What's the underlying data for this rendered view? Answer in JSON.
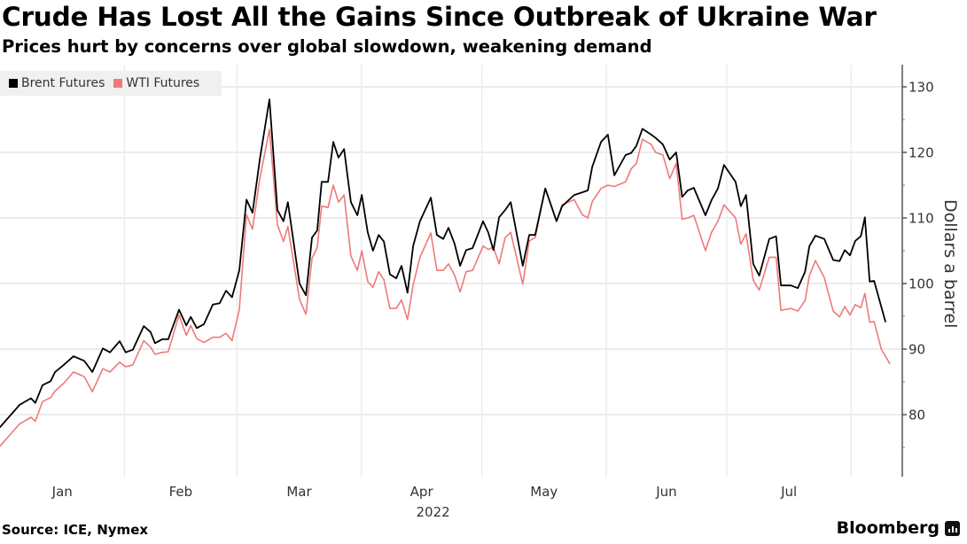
{
  "header": {
    "title": "Crude Has Lost All the Gains Since Outbreak of Ukraine War",
    "subtitle": "Prices hurt by concerns over global slowdown, weakening demand"
  },
  "footer": {
    "source": "Source: ICE, Nymex",
    "brand": "Bloomberg"
  },
  "chart_data": {
    "type": "line",
    "title": "Crude Has Lost All the Gains Since Outbreak of Ukraine War",
    "subtitle": "Prices hurt by concerns over global slowdown, weakening demand",
    "xlabel": "2022",
    "ylabel": "Dollars a barrel",
    "x_unit": "day of year 2022",
    "xlim": [
      1,
      219
    ],
    "ylim": [
      72,
      132
    ],
    "y_ticks": [
      80,
      90,
      100,
      110,
      120,
      130
    ],
    "y_tick_labels": [
      "80",
      "90",
      "100",
      "110",
      "120",
      "130"
    ],
    "x_ticks": [
      {
        "label": "Jan",
        "start": 1,
        "end": 31
      },
      {
        "label": "Feb",
        "start": 32,
        "end": 59
      },
      {
        "label": "Mar",
        "start": 60,
        "end": 90
      },
      {
        "label": "Apr",
        "start": 91,
        "end": 120
      },
      {
        "label": "May",
        "start": 121,
        "end": 151
      },
      {
        "label": "Jun",
        "start": 152,
        "end": 181
      },
      {
        "label": "Jul",
        "start": 182,
        "end": 212
      }
    ],
    "month_boundaries": [
      31,
      59,
      90,
      120,
      151,
      181,
      212
    ],
    "year_label": "2022",
    "grid": true,
    "legend_position": "top-left",
    "series": [
      {
        "name": "Brent Futures",
        "color": "#000000",
        "points": [
          [
            1,
            78.1
          ],
          [
            5.9,
            81.5
          ],
          [
            8.7,
            82.5
          ],
          [
            9.8,
            81.8
          ],
          [
            11.6,
            84.5
          ],
          [
            13.6,
            85.1
          ],
          [
            14.7,
            86.5
          ],
          [
            16.9,
            87.6
          ],
          [
            19.3,
            88.9
          ],
          [
            22,
            88.2
          ],
          [
            24,
            86.5
          ],
          [
            26.6,
            90.1
          ],
          [
            28.4,
            89.5
          ],
          [
            30.8,
            91.2
          ],
          [
            32.3,
            89.5
          ],
          [
            34.1,
            89.9
          ],
          [
            36.8,
            93.5
          ],
          [
            38.5,
            92.6
          ],
          [
            39.6,
            90.9
          ],
          [
            41.4,
            91.5
          ],
          [
            42.9,
            91.5
          ],
          [
            45.6,
            96.0
          ],
          [
            47.4,
            93.6
          ],
          [
            48.5,
            94.9
          ],
          [
            50,
            93.2
          ],
          [
            51.8,
            93.8
          ],
          [
            54,
            96.8
          ],
          [
            55.7,
            97.0
          ],
          [
            57.3,
            98.9
          ],
          [
            58.8,
            97.9
          ],
          [
            60.6,
            102.0
          ],
          [
            62.4,
            112.8
          ],
          [
            63.9,
            110.8
          ],
          [
            65.7,
            118.9
          ],
          [
            68.1,
            128.1
          ],
          [
            70.1,
            111.2
          ],
          [
            71.6,
            109.5
          ],
          [
            72.7,
            112.4
          ],
          [
            75.6,
            100.0
          ],
          [
            77.2,
            98.2
          ],
          [
            78.7,
            107.0
          ],
          [
            80,
            108.1
          ],
          [
            81.1,
            115.5
          ],
          [
            82.7,
            115.5
          ],
          [
            84,
            121.6
          ],
          [
            85.3,
            119.2
          ],
          [
            86.7,
            120.5
          ],
          [
            88.4,
            112.4
          ],
          [
            90,
            110.4
          ],
          [
            91.1,
            113.5
          ],
          [
            92.6,
            107.8
          ],
          [
            93.9,
            105.0
          ],
          [
            95.3,
            107.4
          ],
          [
            96.6,
            106.4
          ],
          [
            98.1,
            101.4
          ],
          [
            99.7,
            100.8
          ],
          [
            101,
            102.7
          ],
          [
            102.5,
            98.6
          ],
          [
            103.9,
            105.7
          ],
          [
            105.6,
            109.5
          ],
          [
            108.3,
            113.1
          ],
          [
            109.8,
            107.4
          ],
          [
            111.4,
            106.8
          ],
          [
            112.7,
            108.5
          ],
          [
            114.2,
            106.1
          ],
          [
            115.6,
            102.7
          ],
          [
            117.1,
            105.1
          ],
          [
            118.7,
            105.4
          ],
          [
            121.3,
            109.5
          ],
          [
            122.6,
            107.8
          ],
          [
            123.9,
            105.1
          ],
          [
            125.3,
            110.1
          ],
          [
            126.8,
            111.2
          ],
          [
            128.2,
            112.4
          ],
          [
            131.2,
            102.7
          ],
          [
            132.8,
            107.4
          ],
          [
            134.3,
            107.4
          ],
          [
            136.8,
            114.5
          ],
          [
            139.6,
            109.5
          ],
          [
            141,
            111.8
          ],
          [
            144,
            113.5
          ],
          [
            146,
            113.9
          ],
          [
            147.4,
            114.2
          ],
          [
            148.5,
            117.8
          ],
          [
            150.7,
            121.6
          ],
          [
            152.4,
            122.7
          ],
          [
            154,
            116.5
          ],
          [
            156.8,
            119.6
          ],
          [
            158.2,
            119.9
          ],
          [
            159.5,
            121.0
          ],
          [
            161,
            123.6
          ],
          [
            163.2,
            122.7
          ],
          [
            164.3,
            122.2
          ],
          [
            166.1,
            121.2
          ],
          [
            167.8,
            118.9
          ],
          [
            169.4,
            120.0
          ],
          [
            170.9,
            113.2
          ],
          [
            172.3,
            114.2
          ],
          [
            173.8,
            114.6
          ],
          [
            176.7,
            110.4
          ],
          [
            178.2,
            112.7
          ],
          [
            179.8,
            114.5
          ],
          [
            181.3,
            118.1
          ],
          [
            184.2,
            115.5
          ],
          [
            185.5,
            111.8
          ],
          [
            186.8,
            113.5
          ],
          [
            188.6,
            103.0
          ],
          [
            190.1,
            101.2
          ],
          [
            192.6,
            106.8
          ],
          [
            194.3,
            107.2
          ],
          [
            195.5,
            99.7
          ],
          [
            198,
            99.7
          ],
          [
            199.7,
            99.3
          ],
          [
            201.5,
            101.8
          ],
          [
            202.6,
            105.7
          ],
          [
            204.1,
            107.3
          ],
          [
            206.3,
            106.8
          ],
          [
            208.5,
            103.6
          ],
          [
            210.1,
            103.4
          ],
          [
            211.4,
            105.1
          ],
          [
            212.7,
            104.3
          ],
          [
            214,
            106.5
          ],
          [
            215.4,
            107.2
          ],
          [
            216.4,
            110.1
          ],
          [
            217.6,
            100.3
          ],
          [
            218.7,
            100.4
          ],
          [
            221.5,
            94.2
          ]
        ]
      },
      {
        "name": "WTI Futures",
        "color": "#ee7a7a",
        "points": [
          [
            1,
            75.2
          ],
          [
            5.9,
            78.6
          ],
          [
            8.7,
            79.6
          ],
          [
            9.8,
            79.0
          ],
          [
            11.6,
            82.0
          ],
          [
            13.6,
            82.6
          ],
          [
            14.7,
            83.6
          ],
          [
            16.9,
            84.8
          ],
          [
            19.3,
            86.5
          ],
          [
            22,
            85.8
          ],
          [
            24,
            83.5
          ],
          [
            26.6,
            87.0
          ],
          [
            28.4,
            86.5
          ],
          [
            30.8,
            88.0
          ],
          [
            32.3,
            87.3
          ],
          [
            34.1,
            87.6
          ],
          [
            36.8,
            91.3
          ],
          [
            38.5,
            90.3
          ],
          [
            39.6,
            89.2
          ],
          [
            41.4,
            89.5
          ],
          [
            42.9,
            89.6
          ],
          [
            45.6,
            95.2
          ],
          [
            47.4,
            92.1
          ],
          [
            48.5,
            93.6
          ],
          [
            50,
            91.6
          ],
          [
            51.8,
            91.0
          ],
          [
            54,
            91.8
          ],
          [
            55.7,
            91.8
          ],
          [
            57.3,
            92.4
          ],
          [
            58.8,
            91.3
          ],
          [
            60.6,
            96.0
          ],
          [
            62.4,
            110.5
          ],
          [
            63.9,
            108.3
          ],
          [
            65.7,
            116.0
          ],
          [
            68.1,
            123.5
          ],
          [
            70.1,
            109.0
          ],
          [
            71.6,
            106.4
          ],
          [
            72.7,
            108.7
          ],
          [
            75.6,
            97.6
          ],
          [
            77.2,
            95.3
          ],
          [
            78.7,
            103.8
          ],
          [
            80,
            105.5
          ],
          [
            81.1,
            111.8
          ],
          [
            82.7,
            111.6
          ],
          [
            84,
            115.0
          ],
          [
            85.3,
            112.4
          ],
          [
            86.7,
            113.5
          ],
          [
            88.4,
            104.2
          ],
          [
            90,
            102.0
          ],
          [
            91.1,
            105.0
          ],
          [
            92.6,
            100.3
          ],
          [
            93.9,
            99.4
          ],
          [
            95.3,
            101.8
          ],
          [
            96.6,
            100.6
          ],
          [
            98.1,
            96.2
          ],
          [
            99.7,
            96.2
          ],
          [
            101,
            97.5
          ],
          [
            102.5,
            94.5
          ],
          [
            103.9,
            99.8
          ],
          [
            105.6,
            104.0
          ],
          [
            108.3,
            107.7
          ],
          [
            109.8,
            102.0
          ],
          [
            111.4,
            102.0
          ],
          [
            112.7,
            103.0
          ],
          [
            114.2,
            101.3
          ],
          [
            115.6,
            98.7
          ],
          [
            117.1,
            101.8
          ],
          [
            118.7,
            102.0
          ],
          [
            121.3,
            105.7
          ],
          [
            122.6,
            105.2
          ],
          [
            123.9,
            105.5
          ],
          [
            125.3,
            103.0
          ],
          [
            126.8,
            107.0
          ],
          [
            128.2,
            107.8
          ],
          [
            131.2,
            99.9
          ],
          [
            132.8,
            106.5
          ],
          [
            134.3,
            107.0
          ],
          [
            136.8,
            114.5
          ],
          [
            139.6,
            109.5
          ],
          [
            141,
            112.0
          ],
          [
            144,
            112.8
          ],
          [
            146,
            110.5
          ],
          [
            147.4,
            110.0
          ],
          [
            148.5,
            112.5
          ],
          [
            150.7,
            114.5
          ],
          [
            152.4,
            115.0
          ],
          [
            154,
            114.8
          ],
          [
            156.8,
            115.5
          ],
          [
            158.2,
            117.5
          ],
          [
            159.5,
            118.3
          ],
          [
            161,
            122.0
          ],
          [
            163.2,
            121.2
          ],
          [
            164.3,
            120.0
          ],
          [
            166.1,
            119.6
          ],
          [
            167.8,
            116.0
          ],
          [
            169.4,
            118.3
          ],
          [
            170.9,
            109.8
          ],
          [
            172.3,
            110.0
          ],
          [
            173.8,
            110.4
          ],
          [
            176.7,
            105.0
          ],
          [
            178.2,
            107.8
          ],
          [
            179.8,
            109.5
          ],
          [
            181.3,
            112.0
          ],
          [
            184.2,
            110.0
          ],
          [
            185.5,
            106.0
          ],
          [
            186.8,
            107.6
          ],
          [
            188.6,
            100.5
          ],
          [
            190.1,
            99.0
          ],
          [
            192.6,
            104.0
          ],
          [
            194.3,
            104.0
          ],
          [
            195.5,
            95.9
          ],
          [
            198,
            96.2
          ],
          [
            199.7,
            95.8
          ],
          [
            201.5,
            97.4
          ],
          [
            202.6,
            101.2
          ],
          [
            204.1,
            103.5
          ],
          [
            206.3,
            100.9
          ],
          [
            208.5,
            95.8
          ],
          [
            210.1,
            94.9
          ],
          [
            211.4,
            96.5
          ],
          [
            212.7,
            95.2
          ],
          [
            214,
            96.8
          ],
          [
            215.4,
            96.3
          ],
          [
            216.4,
            98.5
          ],
          [
            217.6,
            94.1
          ],
          [
            218.7,
            94.2
          ],
          [
            220.5,
            90.0
          ],
          [
            222.6,
            87.8
          ]
        ]
      }
    ]
  }
}
